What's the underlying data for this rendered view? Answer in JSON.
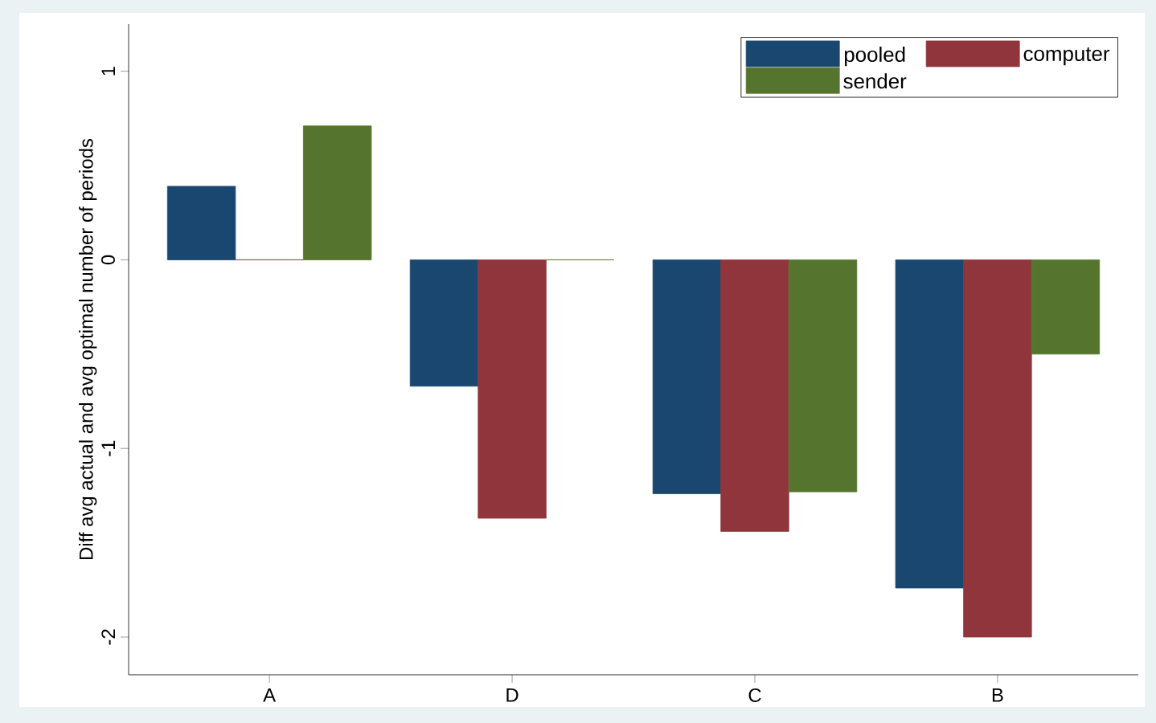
{
  "chart_data": {
    "type": "bar",
    "ylabel": "Diff avg actual and avg optimal number of periods",
    "categories": [
      "A",
      "D",
      "C",
      "B"
    ],
    "series": [
      {
        "name": "pooled",
        "color": "#1a476f",
        "values": [
          0.39,
          -0.67,
          -1.24,
          -1.74
        ]
      },
      {
        "name": "computer",
        "color": "#90353b",
        "values": [
          0,
          -1.37,
          -1.44,
          -2.0
        ]
      },
      {
        "name": "sender",
        "color": "#55752f",
        "values": [
          0.71,
          0,
          -1.23,
          -0.5
        ]
      }
    ],
    "ylim": [
      -2.2,
      1.25
    ],
    "yticks": [
      -2,
      -1,
      0,
      1
    ],
    "legend": "top right"
  }
}
